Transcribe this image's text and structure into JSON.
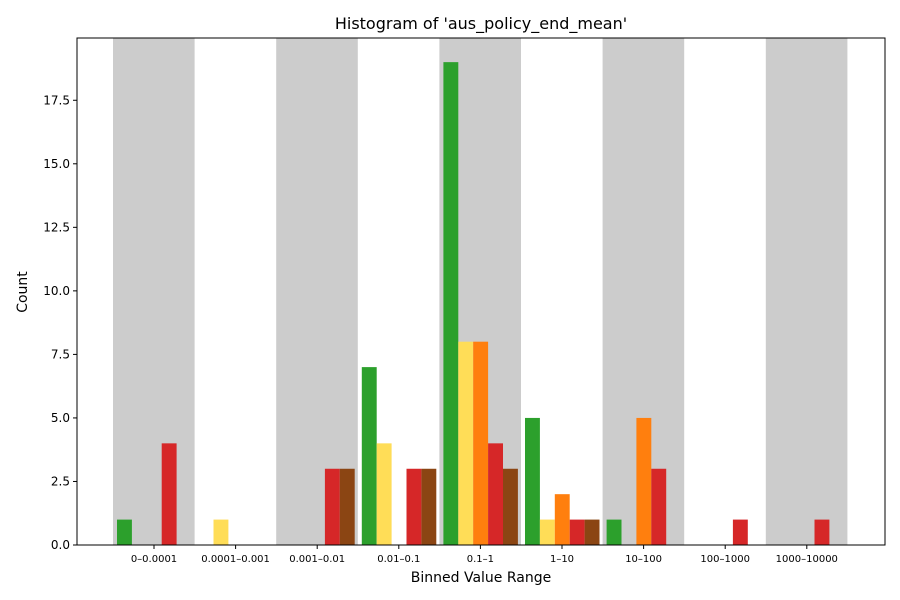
{
  "chart_data": {
    "type": "bar",
    "title": "Histogram of 'aus_policy_end_mean'",
    "xlabel": "Binned Value Range",
    "ylabel": "Count",
    "categories": [
      "0–0.0001",
      "0.0001–0.001",
      "0.001–0.01",
      "0.01–0.1",
      "0.1–1",
      "1–10",
      "10–100",
      "100–1000",
      "1000–10000"
    ],
    "ylim": [
      0,
      20
    ],
    "yticks": [
      "0.0",
      "2.5",
      "5.0",
      "7.5",
      "10.0",
      "12.5",
      "15.0",
      "17.5"
    ],
    "ytick_values": [
      0,
      2.5,
      5,
      7.5,
      10,
      12.5,
      15,
      17.5
    ],
    "shaded_bins": [
      0,
      2,
      4,
      6,
      8
    ],
    "band_color": "#cccccc",
    "series": [
      {
        "color": "#2ca02c",
        "values": [
          1,
          0,
          0,
          7,
          19,
          5,
          1,
          0,
          0
        ]
      },
      {
        "color": "#ffdd57",
        "values": [
          0,
          1,
          0,
          4,
          8,
          1,
          0,
          0,
          0
        ]
      },
      {
        "color": "#ff7f0e",
        "values": [
          0,
          0,
          0,
          0,
          8,
          2,
          5,
          0,
          0
        ]
      },
      {
        "color": "#d62728",
        "values": [
          4,
          0,
          3,
          3,
          4,
          1,
          3,
          1,
          1
        ]
      },
      {
        "color": "#8b4513",
        "values": [
          0,
          0,
          3,
          3,
          3,
          1,
          0,
          0,
          0
        ]
      }
    ]
  }
}
